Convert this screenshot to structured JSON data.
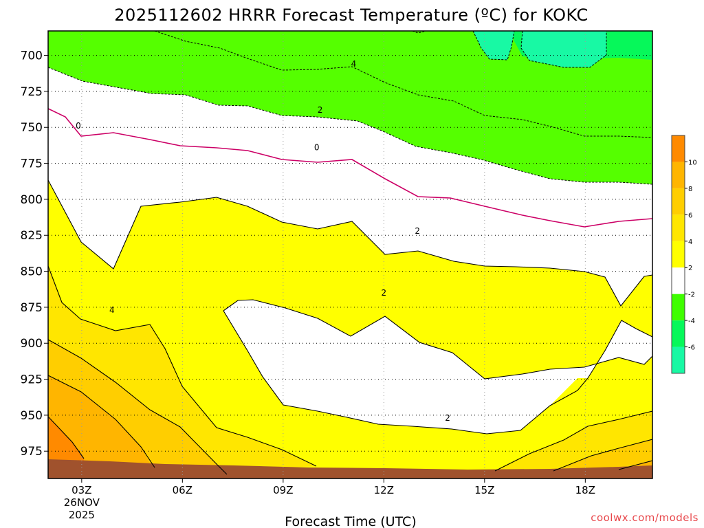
{
  "title": "2025112602 HRRR Forecast Temperature (ºC) for KOKC",
  "credit": "coolwx.com/models",
  "chart_data": {
    "type": "contour",
    "title": "2025112602 HRRR Forecast Temperature (ºC) for KOKC",
    "xlabel": "Forecast Time (UTC)",
    "ylabel": "",
    "x_ticks": [
      {
        "hour": 3,
        "label": "03Z",
        "sub1": "26NOV",
        "sub2": "2025"
      },
      {
        "hour": 6,
        "label": "06Z"
      },
      {
        "hour": 9,
        "label": "09Z"
      },
      {
        "hour": 12,
        "label": "12Z"
      },
      {
        "hour": 15,
        "label": "15Z"
      },
      {
        "hour": 18,
        "label": "18Z"
      }
    ],
    "xlim": [
      2,
      20
    ],
    "y_ticks": [
      700,
      725,
      750,
      775,
      800,
      825,
      850,
      875,
      900,
      925,
      950,
      975
    ],
    "ylim": [
      683,
      994
    ],
    "y_scale": "pressure (hPa), inverted",
    "grid": true,
    "colorbar": {
      "levels": [
        -8,
        -6,
        -4,
        -2,
        2,
        4,
        6,
        8,
        10,
        12
      ],
      "tick_labels": [
        "10",
        "8",
        "6",
        "4",
        "2",
        "-2",
        "-4",
        "-6"
      ],
      "colors": [
        "#18f9a4",
        "#06f85a",
        "#3ffe00",
        "#ffffff",
        "#ffff00",
        "#ffe600",
        "#ffce00",
        "#ffb500",
        "#ff8a00"
      ]
    },
    "contour_labels": [
      {
        "text": "4",
        "hour": 11.1,
        "p": 706
      },
      {
        "text": "2",
        "hour": 10.1,
        "p": 738
      },
      {
        "text": "0",
        "hour": 2.9,
        "p": 749
      },
      {
        "text": "0",
        "hour": 10.0,
        "p": 764
      },
      {
        "text": "2",
        "hour": 13.0,
        "p": 822
      },
      {
        "text": "2",
        "hour": 12.0,
        "p": 865
      },
      {
        "text": "4",
        "hour": 3.9,
        "p": 877
      },
      {
        "text": "2",
        "hour": 13.9,
        "p": 952
      }
    ]
  }
}
